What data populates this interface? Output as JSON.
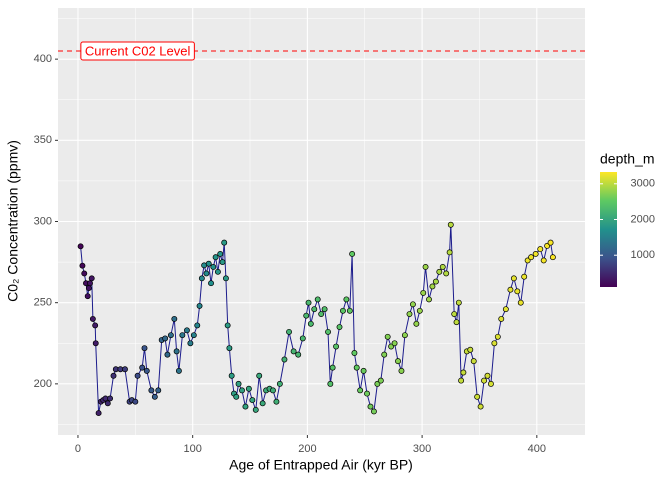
{
  "chart_data": {
    "type": "line",
    "points": true,
    "xlabel": "Age of Entrapped Air (kyr BP)",
    "ylabel": "C0₂ Concentration (ppmv)",
    "xlim": [
      -17.4,
      442
    ],
    "ylim": [
      168.5,
      431.5
    ],
    "xticks": [
      0,
      100,
      200,
      300,
      400
    ],
    "yticks": [
      200,
      250,
      300,
      350,
      400
    ],
    "x_minor_breaks": [
      50,
      150,
      250,
      350
    ],
    "y_minor_breaks": [
      175,
      225,
      275,
      325,
      375,
      425
    ],
    "grid": true,
    "line_color": "#1c1c8c",
    "hline": {
      "value": 405,
      "color": "#ff0000"
    },
    "annotation": {
      "text": "Current C02 Level",
      "x": 52,
      "y": 405
    },
    "colorbar": {
      "title": "depth_m",
      "lim": [
        110,
        3330
      ],
      "ticks": [
        1000,
        2000,
        3000
      ],
      "colors": [
        "#440154",
        "#3b528b",
        "#21918c",
        "#5ec962",
        "#fde725"
      ]
    },
    "x": [
      2.3,
      3.9,
      5.5,
      7,
      8.5,
      9.5,
      10.5,
      12,
      13,
      15,
      15.5,
      18,
      20,
      22,
      24,
      26,
      28,
      31,
      33,
      37,
      41,
      45,
      47,
      50,
      52,
      56,
      58,
      60,
      64,
      67,
      70,
      73,
      76,
      78,
      81,
      84,
      86,
      88,
      91,
      95,
      98,
      101,
      104,
      106,
      108,
      110,
      112,
      114,
      116,
      118,
      120,
      122,
      124,
      126,
      127.5,
      129,
      130.5,
      132,
      134,
      136,
      138,
      140,
      143,
      146,
      149,
      152,
      155,
      158,
      161,
      164,
      167,
      170,
      173,
      176,
      180,
      184,
      188,
      192,
      196,
      199,
      201,
      203,
      206,
      209,
      212,
      215,
      218,
      220,
      222,
      225,
      228,
      231,
      234,
      237,
      239,
      241,
      243,
      246,
      249,
      252,
      255,
      258,
      261,
      264,
      267,
      270,
      273,
      276,
      279,
      282,
      285,
      289,
      292,
      295,
      298,
      301,
      303,
      306,
      309,
      312,
      315,
      318,
      321,
      324,
      325,
      328,
      330,
      332,
      334,
      336,
      339,
      342,
      345,
      348,
      351,
      354,
      357,
      360,
      363,
      366,
      369,
      373,
      377,
      380,
      383,
      386,
      389,
      392,
      395,
      399,
      403,
      406,
      409,
      412,
      414
    ],
    "y": [
      284.7,
      272.8,
      268,
      262,
      254,
      259,
      262,
      265,
      240,
      236,
      225,
      182,
      189,
      190,
      191,
      188,
      191,
      205,
      209,
      209,
      209,
      189,
      190,
      189,
      205,
      210,
      222,
      208,
      196,
      192,
      196,
      227,
      228,
      218,
      230,
      240,
      220,
      208,
      230,
      233,
      225,
      230,
      236,
      248,
      265,
      273,
      268,
      274,
      262,
      272,
      278,
      269,
      280,
      275,
      287,
      265,
      236,
      222,
      205,
      194,
      192,
      200,
      196,
      186,
      197,
      190,
      184,
      205,
      188,
      196,
      197,
      196,
      189,
      200,
      215,
      232,
      220,
      218,
      228,
      242,
      250,
      237,
      246,
      252,
      243,
      246,
      232,
      200,
      210,
      223,
      235,
      245,
      252,
      245,
      280,
      219,
      210,
      196,
      208,
      194,
      186,
      183,
      200,
      202,
      218,
      229,
      223,
      225,
      214,
      208,
      230,
      243,
      249,
      237,
      245,
      256,
      272,
      252,
      260,
      263,
      269,
      272,
      268,
      281,
      298,
      243,
      238,
      250,
      202,
      207,
      220,
      221,
      214,
      192,
      186,
      202,
      205,
      200,
      225,
      229,
      240,
      246,
      258,
      265,
      257,
      250,
      266,
      276,
      278,
      280,
      283,
      276,
      285,
      287,
      278
    ],
    "depth": [
      149,
      173,
      202,
      226,
      250,
      270,
      290,
      310,
      330,
      360,
      372,
      420,
      450,
      480,
      500,
      520,
      540,
      580,
      610,
      660,
      700,
      760,
      790,
      830,
      860,
      920,
      950,
      980,
      1030,
      1070,
      1110,
      1150,
      1190,
      1210,
      1250,
      1290,
      1310,
      1340,
      1380,
      1420,
      1460,
      1510,
      1550,
      1580,
      1610,
      1640,
      1660,
      1690,
      1710,
      1740,
      1760,
      1780,
      1800,
      1820,
      1830,
      1840,
      1850,
      1860,
      1880,
      1900,
      1910,
      1920,
      1940,
      1960,
      1980,
      2000,
      2020,
      2040,
      2060,
      2080,
      2100,
      2120,
      2140,
      2160,
      2180,
      2200,
      2220,
      2240,
      2260,
      2270,
      2280,
      2290,
      2310,
      2330,
      2350,
      2370,
      2390,
      2400,
      2410,
      2430,
      2450,
      2470,
      2490,
      2510,
      2520,
      2530,
      2540,
      2560,
      2580,
      2600,
      2620,
      2640,
      2660,
      2680,
      2700,
      2710,
      2720,
      2730,
      2740,
      2750,
      2760,
      2780,
      2790,
      2800,
      2820,
      2830,
      2840,
      2850,
      2870,
      2890,
      2910,
      2930,
      2950,
      2970,
      2980,
      3000,
      3010,
      3020,
      3030,
      3040,
      3050,
      3060,
      3070,
      3080,
      3100,
      3110,
      3120,
      3130,
      3150,
      3160,
      3170,
      3190,
      3200,
      3210,
      3220,
      3230,
      3240,
      3250,
      3260,
      3270,
      3280,
      3290,
      3300,
      3305,
      3310
    ]
  }
}
